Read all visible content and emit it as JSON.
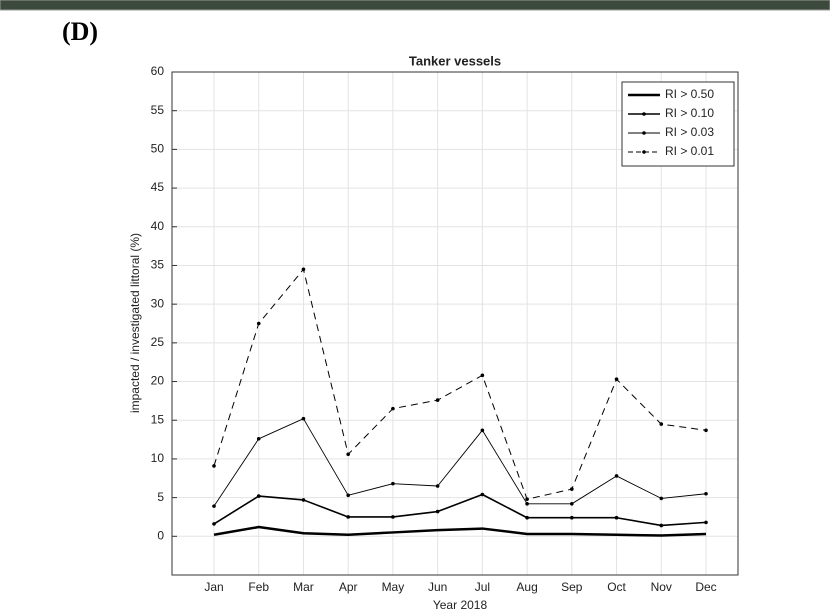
{
  "panel_label": "(D)",
  "chart_data": {
    "type": "line",
    "title": "Tanker vessels",
    "x_label": "Year 2018",
    "y_label": "impacted / investigated littoral (%)",
    "categories": [
      "Jan",
      "Feb",
      "Mar",
      "Apr",
      "May",
      "Jun",
      "Jul",
      "Aug",
      "Sep",
      "Oct",
      "Nov",
      "Dec"
    ],
    "ylim": [
      -5,
      60
    ],
    "yticks": [
      0,
      5,
      10,
      15,
      20,
      25,
      30,
      35,
      40,
      45,
      50,
      55,
      60
    ],
    "grid": true,
    "legend": "top-right",
    "series": [
      {
        "name": "RI > 0.50",
        "color": "#000000",
        "line_width": 2.5,
        "dash": "solid",
        "marker": "none",
        "values": [
          0.2,
          1.2,
          0.4,
          0.2,
          0.5,
          0.8,
          1.0,
          0.3,
          0.3,
          0.2,
          0.1,
          0.3
        ]
      },
      {
        "name": "RI > 0.10",
        "color": "#000000",
        "line_width": 1.6,
        "dash": "solid",
        "marker": "point",
        "values": [
          1.6,
          5.2,
          4.7,
          2.5,
          2.5,
          3.2,
          5.4,
          2.4,
          2.4,
          2.4,
          1.4,
          1.8
        ]
      },
      {
        "name": "RI > 0.03",
        "color": "#000000",
        "line_width": 0.9,
        "dash": "solid",
        "marker": "point",
        "values": [
          3.9,
          12.6,
          15.2,
          5.3,
          6.8,
          6.5,
          13.7,
          4.2,
          4.2,
          7.8,
          4.9,
          5.5
        ]
      },
      {
        "name": "RI > 0.01",
        "color": "#000000",
        "line_width": 1,
        "dash": "dashed",
        "marker": "point",
        "values": [
          9.1,
          27.5,
          34.5,
          10.6,
          16.5,
          17.6,
          20.8,
          4.8,
          6.1,
          20.3,
          14.5,
          13.7
        ]
      }
    ]
  }
}
